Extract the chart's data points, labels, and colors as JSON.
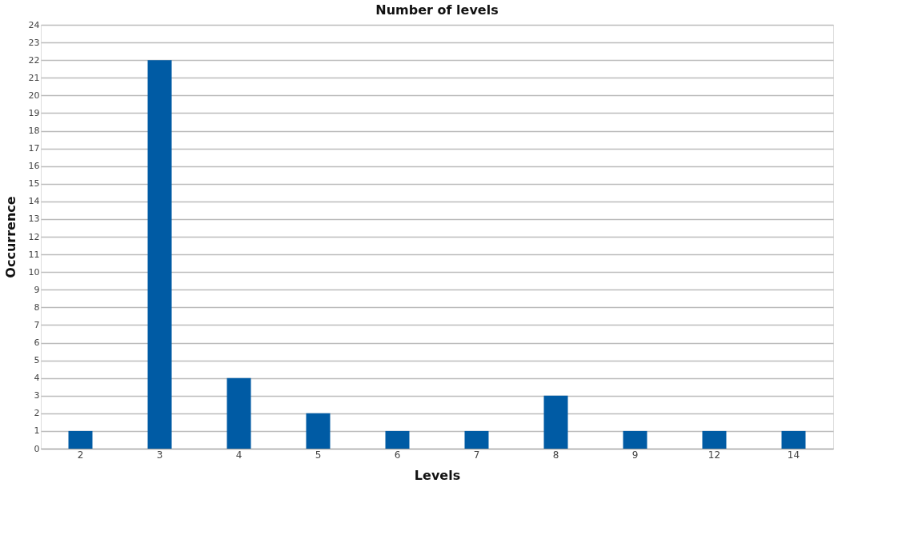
{
  "chart_data": {
    "type": "bar",
    "title": "Number of levels",
    "xlabel": "Levels",
    "ylabel": "Occurrence",
    "categories": [
      "2",
      "3",
      "4",
      "5",
      "6",
      "7",
      "8",
      "9",
      "12",
      "14"
    ],
    "values": [
      1,
      22,
      4,
      2,
      1,
      1,
      3,
      1,
      1,
      1
    ],
    "color": "#005ba4",
    "ylim": [
      0,
      24
    ],
    "yticks": [
      0,
      1,
      2,
      3,
      4,
      5,
      6,
      7,
      8,
      9,
      10,
      11,
      12,
      13,
      14,
      15,
      16,
      17,
      18,
      19,
      20,
      21,
      22,
      23,
      24
    ],
    "grid": "y"
  }
}
